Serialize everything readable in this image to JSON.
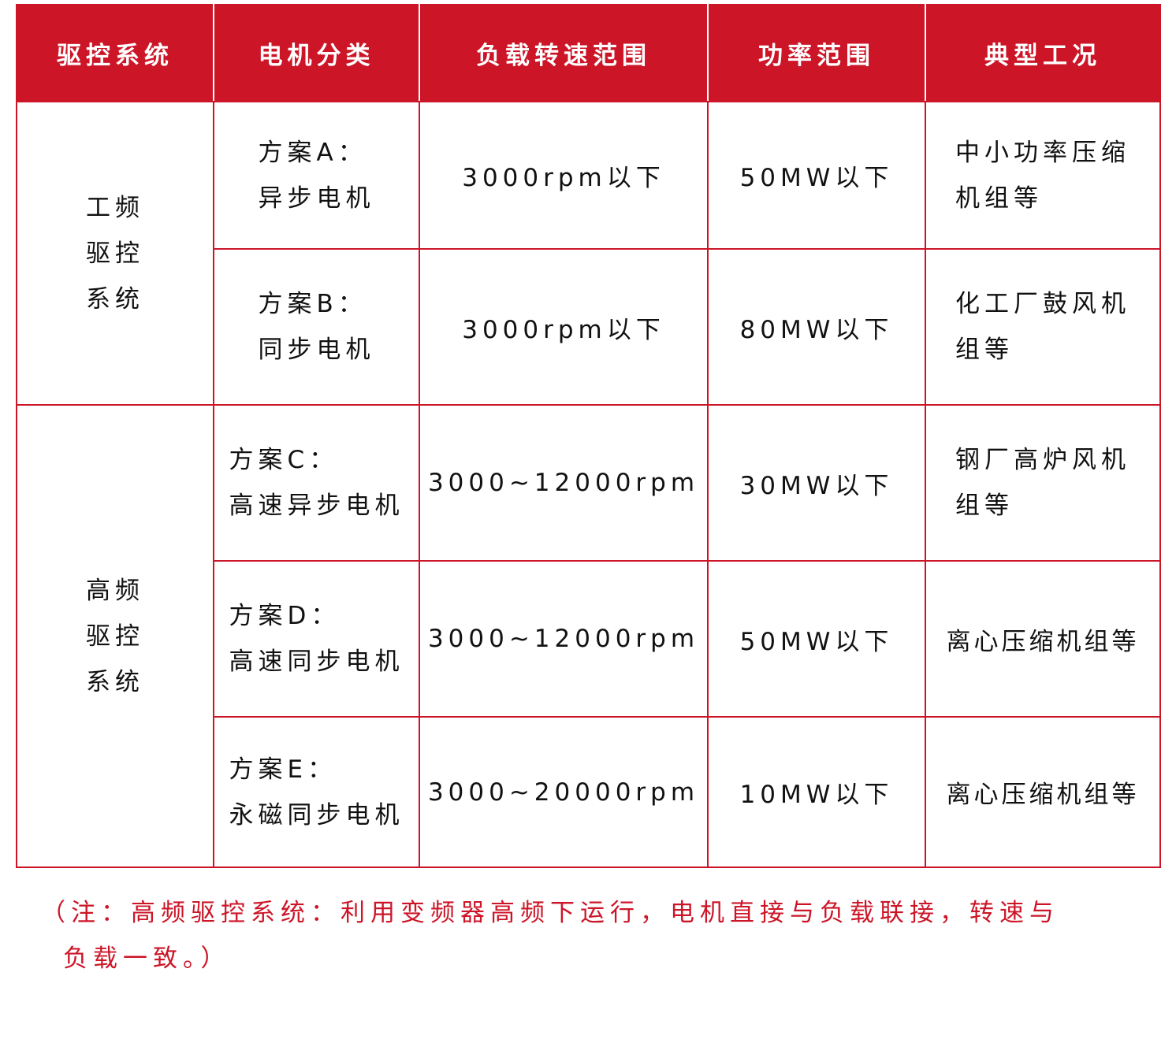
{
  "headers": [
    "驱控系统",
    "电机分类",
    "负载转速范围",
    "功率范围",
    "典型工况"
  ],
  "groups": [
    {
      "system": [
        "工频",
        "驱控",
        "系统"
      ]
    },
    {
      "system": [
        "高频",
        "驱控",
        "系统"
      ]
    }
  ],
  "rows": [
    {
      "scheme": "方案A：",
      "motor": "异步电机",
      "speed": "3000rpm以下",
      "power": "50MW以下",
      "case": [
        "中小功率压缩",
        "机组等"
      ]
    },
    {
      "scheme": "方案B：",
      "motor": "同步电机",
      "speed": "3000rpm以下",
      "power": "80MW以下",
      "case": [
        "化工厂鼓风机",
        "组等"
      ]
    },
    {
      "scheme": "方案C：",
      "motor": "高速异步电机",
      "speed": "3000~12000rpm",
      "power": "30MW以下",
      "case": [
        "钢厂高炉风机",
        "组等"
      ]
    },
    {
      "scheme": "方案D：",
      "motor": "高速同步电机",
      "speed": "3000~12000rpm",
      "power": "50MW以下",
      "case": [
        "离心压缩机组等",
        ""
      ]
    },
    {
      "scheme": "方案E：",
      "motor": "永磁同步电机",
      "speed": "3000~20000rpm",
      "power": "10MW以下",
      "case": [
        "离心压缩机组等",
        ""
      ]
    }
  ],
  "note": {
    "line1": "（注：高频驱控系统：利用变频器高频下运行，电机直接与负载联接，转速与",
    "line2": "负载一致。）"
  },
  "colors": {
    "accent": "#cc1628"
  }
}
